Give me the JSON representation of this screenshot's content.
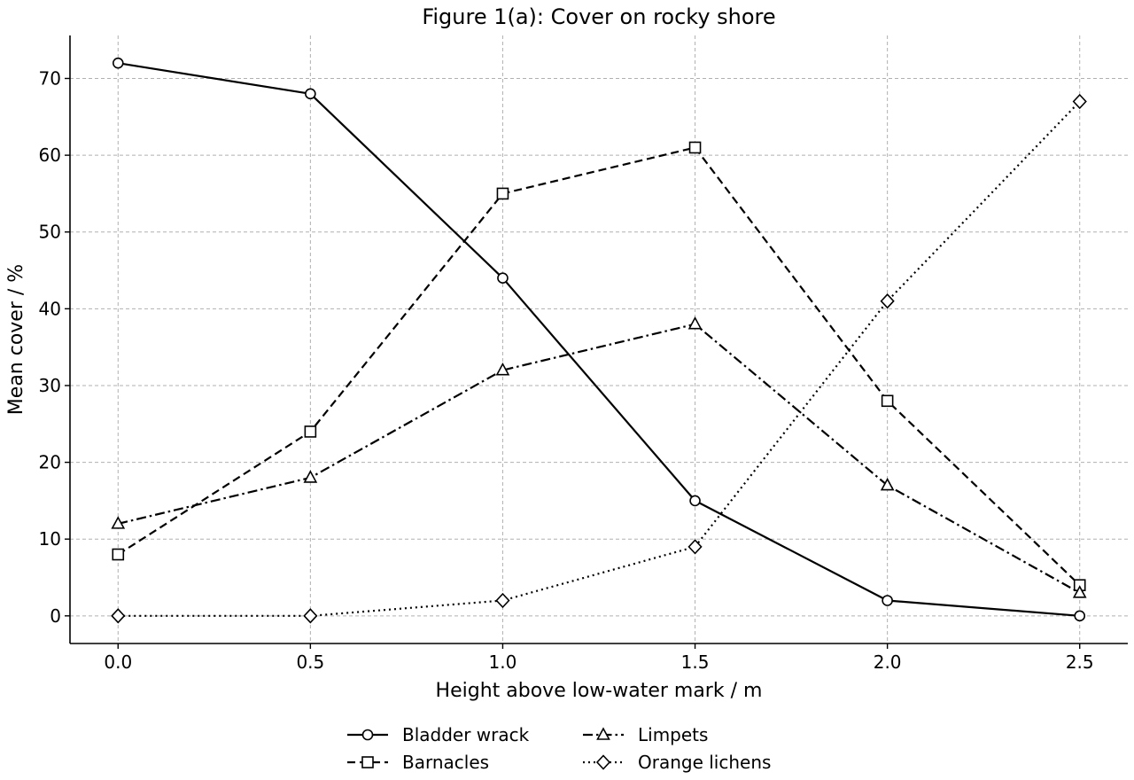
{
  "chart_data": {
    "type": "line",
    "title": "Figure 1(a): Cover on rocky shore",
    "xlabel": "Height above low-water mark / m",
    "ylabel": "Mean cover / %",
    "x": [
      0.0,
      0.5,
      1.0,
      1.5,
      2.0,
      2.5
    ],
    "x_ticks": [
      "0.0",
      "0.5",
      "1.0",
      "1.5",
      "2.0",
      "2.5"
    ],
    "y_ticks": [
      "0",
      "10",
      "20",
      "30",
      "40",
      "50",
      "60",
      "70"
    ],
    "xlim": [
      -0.125,
      2.625
    ],
    "ylim": [
      -3.6,
      75.6
    ],
    "grid": true,
    "legend_position": "bottom-center",
    "series": [
      {
        "name": "Bladder wrack",
        "values": [
          72,
          68,
          44,
          15,
          2,
          0
        ],
        "marker": "circle",
        "dash": "solid",
        "color": "#000000"
      },
      {
        "name": "Barnacles",
        "values": [
          8,
          24,
          55,
          61,
          28,
          4
        ],
        "marker": "square",
        "dash": "dashed",
        "color": "#000000"
      },
      {
        "name": "Limpets",
        "values": [
          12,
          18,
          32,
          38,
          17,
          3
        ],
        "marker": "triangle",
        "dash": "dashdot",
        "color": "#000000"
      },
      {
        "name": "Orange lichens",
        "values": [
          0,
          0,
          2,
          9,
          41,
          67
        ],
        "marker": "diamond",
        "dash": "dotted",
        "color": "#000000"
      }
    ]
  }
}
